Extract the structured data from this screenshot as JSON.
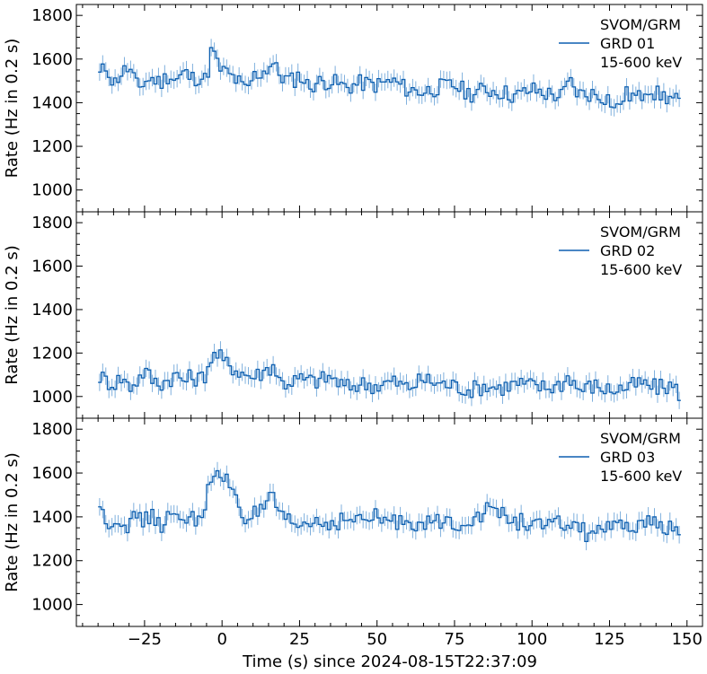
{
  "figure": {
    "xlabel": "Time (s) since 2024-08-15T22:37:09",
    "ylabel": "Rate (Hz in 0.2 s)",
    "xlim": [
      -47,
      155
    ],
    "ylim": [
      900,
      1850
    ],
    "xticks": [
      -25,
      0,
      25,
      50,
      75,
      100,
      125,
      150
    ],
    "xtick_labels": [
      "−25",
      "0",
      "25",
      "50",
      "75",
      "100",
      "125",
      "150"
    ],
    "yticks": [
      1000,
      1200,
      1400,
      1600,
      1800
    ],
    "ytick_labels": [
      "1000",
      "1200",
      "1400",
      "1600",
      "1800"
    ],
    "line_color": "#0d5fb0",
    "errbar_color": "#7fb0dd"
  },
  "chart_data": [
    {
      "type": "line",
      "detector": "GRD 01",
      "legend": [
        "SVOM/GRM",
        "GRD 01",
        "15-600 keV"
      ],
      "x_range": [
        -40,
        148
      ],
      "bin_width": 1.0,
      "baseline": "gradual decline from ~1510 at -40 s to ~1420 at 148 s",
      "series": [
        {
          "name": "GRD 01",
          "x": [
            -40,
            -37,
            -35,
            -33,
            -30,
            -27,
            -25,
            -22,
            -20,
            -17,
            -15,
            -12,
            -10,
            -7,
            -5,
            -4,
            -3,
            -2,
            -1,
            0,
            2,
            5,
            8,
            10,
            13,
            15,
            16,
            18,
            20,
            23,
            25,
            28,
            30,
            35,
            40,
            45,
            50,
            55,
            60,
            65,
            70,
            75,
            80,
            85,
            90,
            95,
            100,
            105,
            110,
            112,
            115,
            120,
            125,
            127,
            130,
            135,
            137,
            140,
            145,
            148
          ],
          "values": [
            1520,
            1570,
            1480,
            1530,
            1560,
            1460,
            1500,
            1510,
            1490,
            1530,
            1500,
            1540,
            1510,
            1520,
            1500,
            1600,
            1660,
            1590,
            1560,
            1550,
            1530,
            1500,
            1450,
            1520,
            1540,
            1560,
            1590,
            1540,
            1510,
            1500,
            1530,
            1470,
            1490,
            1500,
            1470,
            1490,
            1480,
            1500,
            1460,
            1450,
            1470,
            1480,
            1440,
            1460,
            1450,
            1430,
            1460,
            1440,
            1430,
            1500,
            1440,
            1440,
            1420,
            1360,
            1440,
            1420,
            1480,
            1440,
            1420,
            1400
          ],
          "error": 40
        }
      ]
    },
    {
      "type": "line",
      "detector": "GRD 02",
      "legend": [
        "SVOM/GRM",
        "GRD 02",
        "15-600 keV"
      ],
      "x_range": [
        -40,
        148
      ],
      "bin_width": 1.0,
      "baseline": "roughly flat, ~1080 early declining to ~1030 late",
      "series": [
        {
          "name": "GRD 02",
          "x": [
            -40,
            -37,
            -35,
            -32,
            -30,
            -27,
            -25,
            -22,
            -20,
            -17,
            -15,
            -12,
            -10,
            -7,
            -5,
            -4,
            -3,
            -2,
            -1,
            0,
            2,
            5,
            8,
            10,
            13,
            15,
            16,
            17,
            18,
            20,
            25,
            30,
            35,
            40,
            45,
            50,
            55,
            60,
            65,
            70,
            75,
            80,
            85,
            90,
            95,
            100,
            105,
            110,
            112,
            115,
            120,
            125,
            130,
            135,
            140,
            145,
            148
          ],
          "values": [
            1100,
            1070,
            1060,
            1090,
            1040,
            1080,
            1120,
            1070,
            1060,
            1080,
            1100,
            1070,
            1090,
            1080,
            1110,
            1170,
            1190,
            1180,
            1200,
            1160,
            1150,
            1120,
            1100,
            1090,
            1110,
            1130,
            1140,
            1150,
            1080,
            1060,
            1080,
            1070,
            1090,
            1040,
            1060,
            1050,
            1070,
            1040,
            1080,
            1060,
            1050,
            1030,
            1050,
            1040,
            1060,
            1050,
            1040,
            1060,
            1100,
            1030,
            1050,
            1030,
            1040,
            1060,
            1040,
            1050,
            1010
          ],
          "error": 40
        }
      ]
    },
    {
      "type": "line",
      "detector": "GRD 03",
      "legend": [
        "SVOM/GRM",
        "GRD 03",
        "15-600 keV"
      ],
      "x_range": [
        -40,
        148
      ],
      "bin_width": 1.0,
      "baseline": "~1380 early declining to ~1340 late",
      "series": [
        {
          "name": "GRD 03",
          "x": [
            -40,
            -38,
            -35,
            -32,
            -30,
            -27,
            -25,
            -22,
            -20,
            -17,
            -15,
            -12,
            -10,
            -7,
            -5,
            -4,
            -3,
            -2,
            -1,
            0,
            2,
            4,
            5,
            6,
            8,
            10,
            13,
            15,
            16,
            17,
            18,
            20,
            25,
            30,
            35,
            40,
            45,
            50,
            55,
            60,
            65,
            70,
            75,
            80,
            85,
            88,
            90,
            95,
            100,
            105,
            110,
            115,
            118,
            120,
            125,
            130,
            135,
            140,
            145,
            148
          ],
          "values": [
            1450,
            1400,
            1370,
            1390,
            1360,
            1410,
            1380,
            1400,
            1360,
            1400,
            1380,
            1410,
            1390,
            1400,
            1480,
            1560,
            1540,
            1580,
            1590,
            1570,
            1560,
            1520,
            1480,
            1420,
            1400,
            1410,
            1420,
            1440,
            1550,
            1470,
            1400,
            1380,
            1360,
            1380,
            1370,
            1390,
            1380,
            1400,
            1370,
            1390,
            1360,
            1380,
            1370,
            1390,
            1420,
            1450,
            1410,
            1380,
            1370,
            1350,
            1370,
            1360,
            1310,
            1350,
            1340,
            1350,
            1360,
            1370,
            1350,
            1320
          ],
          "error": 40
        }
      ]
    }
  ]
}
